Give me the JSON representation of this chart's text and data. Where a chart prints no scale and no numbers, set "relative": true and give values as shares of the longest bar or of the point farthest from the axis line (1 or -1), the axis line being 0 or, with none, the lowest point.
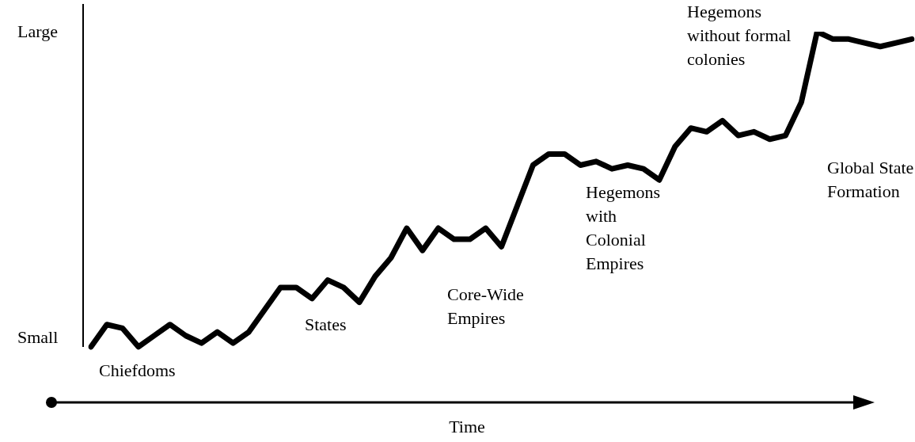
{
  "chart_data": {
    "type": "line",
    "relative": true,
    "xlabel": "Time",
    "legend": false,
    "marker": "none",
    "line_style": "solid",
    "categories": [
      null,
      null,
      null,
      null,
      null,
      null,
      null,
      null,
      null,
      null,
      null,
      null,
      null,
      null,
      null,
      null,
      null,
      null,
      null,
      null,
      null,
      null,
      null,
      null,
      null,
      null,
      null,
      null,
      null,
      null,
      null,
      null,
      null,
      null,
      null,
      null,
      null,
      null,
      null,
      null,
      null,
      null,
      null,
      null,
      null,
      null,
      null,
      null,
      null,
      null,
      null,
      null,
      null
    ],
    "series": [
      {
        "color": "#000000",
        "values": [
          0.15,
          0.21,
          0.2,
          0.15,
          0.18,
          0.21,
          0.18,
          0.16,
          0.19,
          0.16,
          0.19,
          0.25,
          0.31,
          0.31,
          0.28,
          0.33,
          0.31,
          0.27,
          0.34,
          0.39,
          0.47,
          0.41,
          0.47,
          0.44,
          0.44,
          0.47,
          0.42,
          0.53,
          0.64,
          0.67,
          0.67,
          0.64,
          0.65,
          0.63,
          0.64,
          0.63,
          0.6,
          0.69,
          0.74,
          0.73,
          0.76,
          0.72,
          0.73,
          0.71,
          0.72,
          0.81,
          1.0,
          0.98,
          0.98,
          0.97,
          0.96,
          0.97,
          0.98
        ]
      }
    ],
    "annotations": [
      "Small",
      "Large",
      "Chiefdoms",
      "States",
      "Core-Wide\nEmpires",
      "Hegemons\nwith\nColonial\nEmpires",
      "Hegemons\nwithout formal\ncolonies",
      "Global State\nFormation"
    ]
  }
}
